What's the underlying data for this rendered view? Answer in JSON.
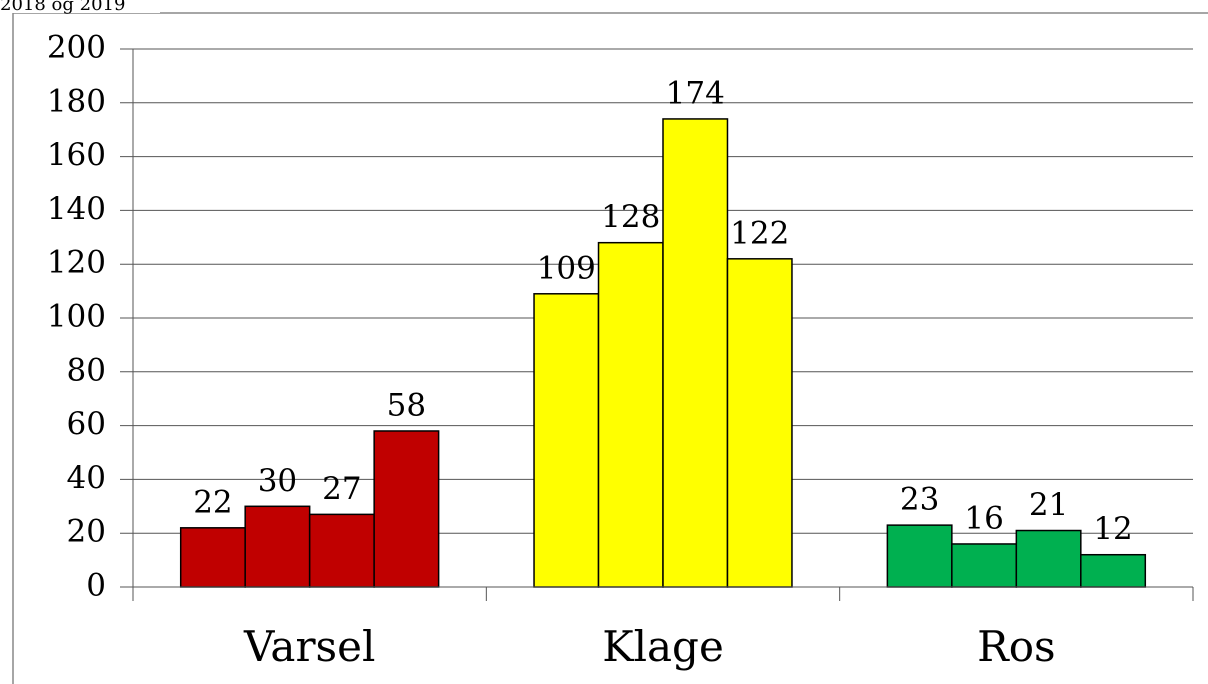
{
  "chart_data": {
    "type": "bar",
    "subtitle": "2018 og 2019",
    "categories": [
      "Varsel",
      "Klage",
      "Ros"
    ],
    "values": [
      [
        22,
        30,
        27,
        58
      ],
      [
        109,
        128,
        174,
        122
      ],
      [
        23,
        16,
        21,
        12
      ]
    ],
    "colors": [
      "#c00000",
      "#ffff00",
      "#00b050"
    ],
    "ylim": [
      0,
      200
    ],
    "yticks": [
      0,
      20,
      40,
      60,
      80,
      100,
      120,
      140,
      160,
      180,
      200
    ],
    "grid": true
  }
}
